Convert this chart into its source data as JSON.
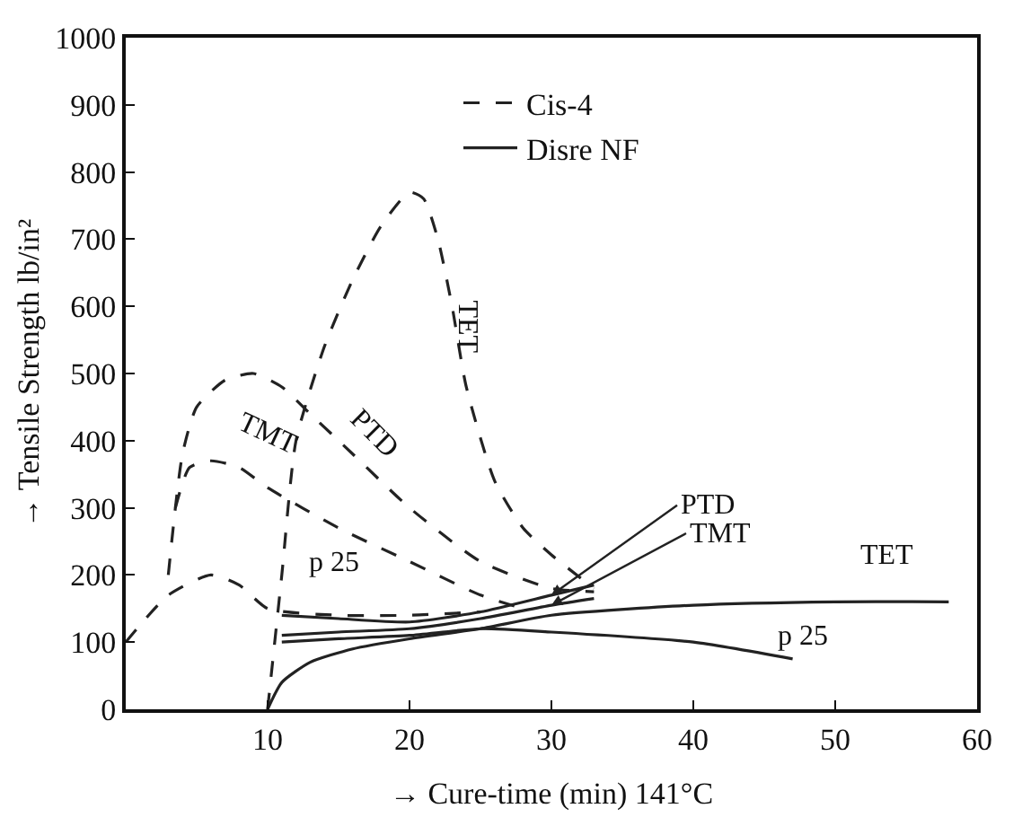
{
  "chart_data": {
    "type": "line",
    "xlabel": "→ Cure-time (min) 141°C",
    "ylabel": "→ Tensile Strength lb/in²",
    "xlim": [
      0,
      60
    ],
    "xticks": [
      10,
      20,
      30,
      40,
      50,
      60
    ],
    "ylim": [
      0,
      1000
    ],
    "yticks": [
      0,
      100,
      200,
      300,
      400,
      500,
      600,
      700,
      800,
      900,
      1000
    ],
    "legend": "top",
    "marker": "none",
    "series": [
      {
        "name": "Cis-4",
        "color": "#222222",
        "line_style": "dashed",
        "x": [
          10,
          11,
          12,
          14,
          16,
          18,
          20,
          21,
          22,
          23,
          24,
          26,
          28,
          30,
          33
        ],
        "values": [
          0,
          200,
          400,
          540,
          640,
          720,
          770,
          760,
          700,
          600,
          480,
          340,
          270,
          230,
          180
        ]
      },
      {
        "color": "#222222",
        "line_style": "dashed",
        "x": [
          3,
          4,
          5,
          7,
          9,
          11,
          13,
          16,
          20,
          25,
          30,
          33
        ],
        "values": [
          200,
          380,
          450,
          490,
          500,
          480,
          440,
          380,
          300,
          220,
          180,
          175
        ]
      },
      {
        "color": "#222222",
        "line_style": "dashed",
        "x": [
          3.5,
          4.5,
          6,
          8,
          10,
          15,
          20,
          25,
          28
        ],
        "values": [
          300,
          360,
          370,
          360,
          330,
          270,
          220,
          170,
          150
        ]
      },
      {
        "color": "#222222",
        "line_style": "dashed",
        "x": [
          0,
          3,
          6,
          8,
          10,
          15,
          20,
          25
        ],
        "values": [
          100,
          170,
          200,
          185,
          150,
          140,
          140,
          145
        ]
      },
      {
        "name": "Disre NF",
        "color": "#222222",
        "line_style": "solid",
        "x": [
          10,
          11,
          13,
          16,
          20,
          25,
          30,
          40,
          50,
          58
        ],
        "values": [
          0,
          40,
          70,
          90,
          105,
          120,
          140,
          155,
          160,
          160
        ]
      },
      {
        "color": "#222222",
        "line_style": "solid",
        "x": [
          11,
          15,
          20,
          25,
          30,
          33
        ],
        "values": [
          140,
          135,
          130,
          145,
          170,
          185
        ]
      },
      {
        "color": "#222222",
        "line_style": "solid",
        "x": [
          11,
          15,
          20,
          25,
          30,
          33
        ],
        "values": [
          110,
          115,
          120,
          135,
          155,
          165
        ]
      },
      {
        "color": "#222222",
        "line_style": "solid",
        "x": [
          11,
          15,
          20,
          25,
          30,
          40,
          47
        ],
        "values": [
          100,
          105,
          110,
          120,
          115,
          100,
          75
        ]
      }
    ],
    "annotations": [
      "TET",
      "PTD",
      "TMT",
      "p 25",
      {
        "text": "PTD",
        "x": 30,
        "y": 170
      },
      {
        "text": "TMT",
        "x": 30,
        "y": 155
      },
      "TET",
      "p 25"
    ]
  }
}
